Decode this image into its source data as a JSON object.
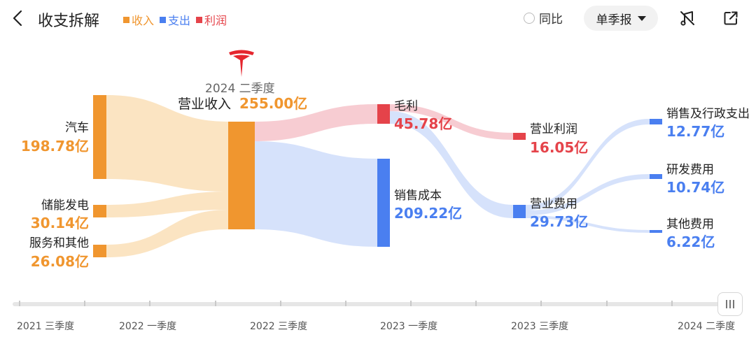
{
  "header": {
    "title": "收支拆解",
    "legend": [
      {
        "label": "收入",
        "color": "#f0962f"
      },
      {
        "label": "支出",
        "color": "#4a7ff0"
      },
      {
        "label": "利润",
        "color": "#e5434a"
      }
    ],
    "yoy_label": "同比",
    "period_select": "单季报"
  },
  "center": {
    "period": "2024 二季度",
    "revenue_label": "营业收入",
    "revenue_value": "255.00亿"
  },
  "sources": [
    {
      "label": "汽车",
      "value": "198.78亿"
    },
    {
      "label": "储能发电",
      "value": "30.14亿"
    },
    {
      "label": "服务和其他",
      "value": "26.08亿"
    }
  ],
  "gross_profit": {
    "label": "毛利",
    "value": "45.78亿"
  },
  "cost_of_sales": {
    "label": "销售成本",
    "value": "209.22亿"
  },
  "operating_profit": {
    "label": "营业利润",
    "value": "16.05亿"
  },
  "operating_expense": {
    "label": "营业费用",
    "value": "29.73亿"
  },
  "expenses": [
    {
      "label": "销售及行政支出",
      "value": "12.77亿"
    },
    {
      "label": "研发费用",
      "value": "10.74亿"
    },
    {
      "label": "其他费用",
      "value": "6.22亿"
    }
  ],
  "timeline": {
    "labels": [
      "2021 三季度",
      "2022 一季度",
      "2022 三季度",
      "2023 一季度",
      "2023 三季度",
      "2024 二季度"
    ]
  },
  "colors": {
    "income": "#f0962f",
    "expense": "#4a7ff0",
    "profit": "#e5434a",
    "income_flow": "#fbe4c2",
    "expense_flow": "#d6e2fb",
    "profit_flow": "#f7ccd2",
    "brand": "#e5262e"
  },
  "icons": [
    "back-arrow-icon",
    "music-note-off-icon",
    "share-external-icon",
    "tesla-logo",
    "timeline-handle-icon"
  ]
}
